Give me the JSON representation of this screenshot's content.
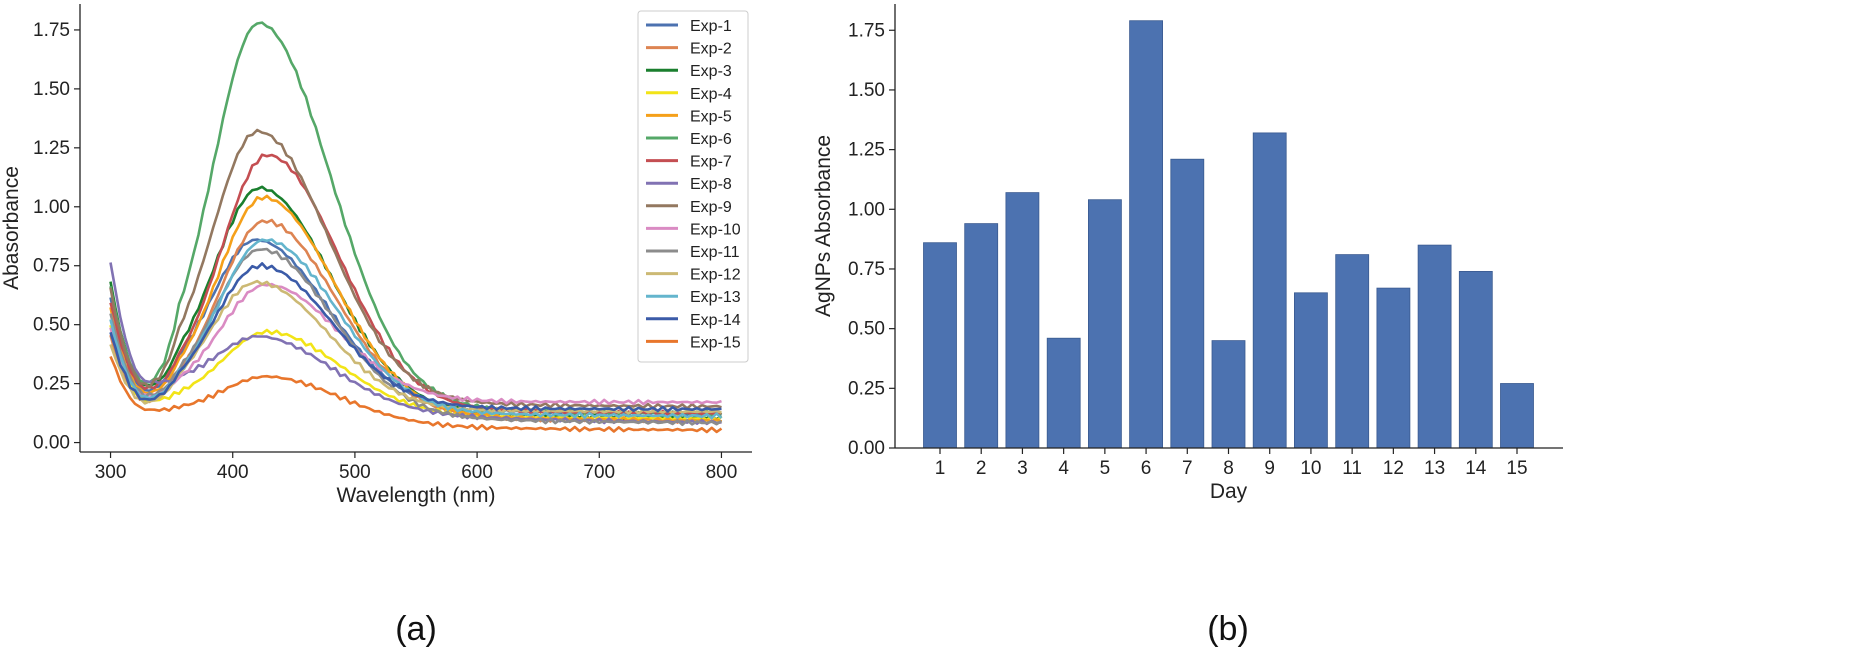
{
  "chart_data": [
    {
      "type": "line",
      "panel_label": "(a)",
      "title": "",
      "xlabel": "Wavelength (nm)",
      "ylabel": "Abasorbance",
      "xlim": [
        275,
        825
      ],
      "ylim": [
        -0.04,
        1.86
      ],
      "xticks": [
        300,
        400,
        500,
        600,
        700,
        800
      ],
      "yticks": [
        0.0,
        0.25,
        0.5,
        0.75,
        1.0,
        1.25,
        1.5,
        1.75
      ],
      "ytick_labels": [
        "0.00",
        "0.25",
        "0.50",
        "0.75",
        "1.00",
        "1.25",
        "1.50",
        "1.75"
      ],
      "legend_position": "top-right",
      "series": [
        {
          "name": "Exp-1",
          "color": "#4C72B0",
          "start": 0.62,
          "min": 0.22,
          "peak": 0.86,
          "end": 0.12
        },
        {
          "name": "Exp-2",
          "color": "#DD8452",
          "start": 0.45,
          "min": 0.18,
          "peak": 0.94,
          "end": 0.09
        },
        {
          "name": "Exp-3",
          "color": "#1A7F2E",
          "start": 0.68,
          "min": 0.24,
          "peak": 1.08,
          "end": 0.1
        },
        {
          "name": "Exp-4",
          "color": "#F2E417",
          "start": 0.5,
          "min": 0.18,
          "peak": 0.47,
          "end": 0.1
        },
        {
          "name": "Exp-5",
          "color": "#F5A01A",
          "start": 0.57,
          "min": 0.21,
          "peak": 1.04,
          "end": 0.09
        },
        {
          "name": "Exp-6",
          "color": "#55A868",
          "start": 0.66,
          "min": 0.25,
          "peak": 1.78,
          "end": 0.12
        },
        {
          "name": "Exp-7",
          "color": "#C44E52",
          "start": 0.6,
          "min": 0.23,
          "peak": 1.22,
          "end": 0.12
        },
        {
          "name": "Exp-8",
          "color": "#8172B3",
          "start": 0.77,
          "min": 0.26,
          "peak": 0.45,
          "end": 0.08
        },
        {
          "name": "Exp-9",
          "color": "#937860",
          "start": 0.65,
          "min": 0.24,
          "peak": 1.32,
          "end": 0.15
        },
        {
          "name": "Exp-10",
          "color": "#DA8BC3",
          "start": 0.48,
          "min": 0.2,
          "peak": 0.67,
          "end": 0.17
        },
        {
          "name": "Exp-11",
          "color": "#8C8C8C",
          "start": 0.55,
          "min": 0.2,
          "peak": 0.82,
          "end": 0.08
        },
        {
          "name": "Exp-12",
          "color": "#CCB974",
          "start": 0.42,
          "min": 0.17,
          "peak": 0.68,
          "end": 0.13
        },
        {
          "name": "Exp-13",
          "color": "#64B5CD",
          "start": 0.52,
          "min": 0.19,
          "peak": 0.86,
          "end": 0.11
        },
        {
          "name": "Exp-14",
          "color": "#3B5BA8",
          "start": 0.47,
          "min": 0.18,
          "peak": 0.75,
          "end": 0.14
        },
        {
          "name": "Exp-15",
          "color": "#E8762C",
          "start": 0.37,
          "min": 0.14,
          "peak": 0.28,
          "end": 0.05
        }
      ]
    },
    {
      "type": "bar",
      "panel_label": "(b)",
      "title": "",
      "xlabel": "Day",
      "ylabel": "AgNPs Absorbance",
      "ylim": [
        0,
        1.86
      ],
      "yticks": [
        0.0,
        0.25,
        0.5,
        0.75,
        1.0,
        1.25,
        1.5,
        1.75
      ],
      "ytick_labels": [
        "0.00",
        "0.25",
        "0.50",
        "0.75",
        "1.00",
        "1.25",
        "1.50",
        "1.75"
      ],
      "bar_color": "#4C72B0",
      "categories": [
        "1",
        "2",
        "3",
        "4",
        "5",
        "6",
        "7",
        "8",
        "9",
        "10",
        "11",
        "12",
        "13",
        "14",
        "15"
      ],
      "values": [
        0.86,
        0.94,
        1.07,
        0.46,
        1.04,
        1.79,
        1.21,
        0.45,
        1.32,
        0.65,
        0.81,
        0.67,
        0.85,
        0.74,
        0.27
      ]
    }
  ]
}
